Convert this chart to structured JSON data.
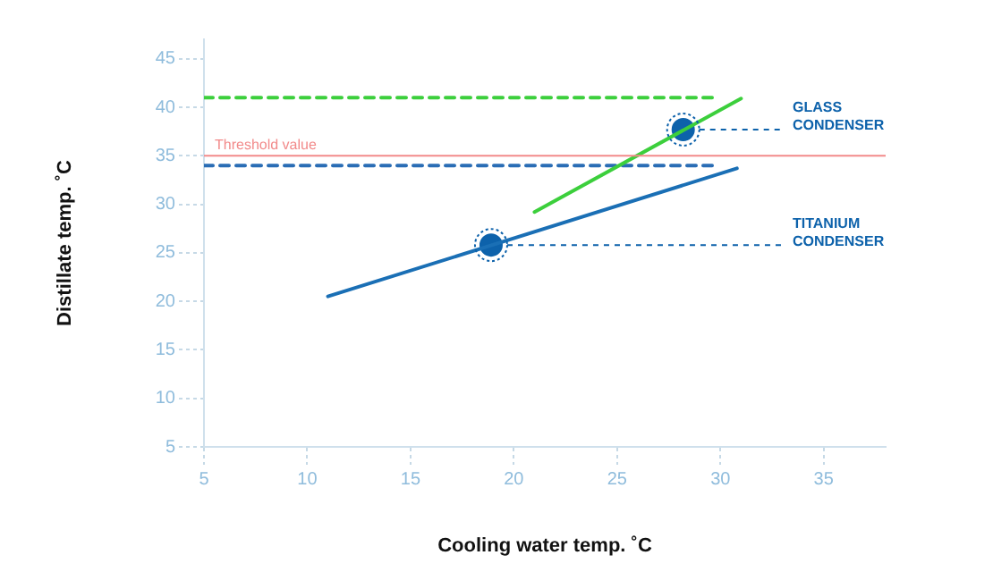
{
  "chart_data": {
    "type": "line",
    "xlabel": "Cooling water temp. ˚C",
    "ylabel": "Distillate temp. ˚C",
    "xlim": [
      5,
      38
    ],
    "ylim": [
      5,
      47
    ],
    "xticks": [
      5,
      10,
      15,
      20,
      25,
      30,
      35
    ],
    "yticks": [
      5,
      10,
      15,
      20,
      25,
      30,
      35,
      40,
      45
    ],
    "grid": false,
    "legend": false,
    "marker": "none",
    "line_style": "solid",
    "series": [
      {
        "color": "#1a6fb5",
        "x": [
          11,
          30.8
        ],
        "values": [
          20.5,
          33.7
        ]
      },
      {
        "color": "#3ccf3c",
        "x": [
          21,
          31
        ],
        "values": [
          29.2,
          40.9
        ]
      },
      {
        "color": "#3ccf3c",
        "x": [
          5,
          29.9
        ],
        "values": [
          41,
          41
        ],
        "line_style": "dashed"
      },
      {
        "color": "#2a6db5",
        "x": [
          5,
          29.9
        ],
        "values": [
          34,
          34
        ],
        "line_style": "dashed"
      },
      {
        "type": "scatter",
        "name": "GLASS CONDENSER",
        "color": "#0d62ab",
        "x": [
          28.2
        ],
        "values": [
          37.7
        ],
        "marker": "circle"
      },
      {
        "type": "scatter",
        "name": "TITANIUM CONDENSER",
        "color": "#0d62ab",
        "x": [
          18.9
        ],
        "values": [
          25.8
        ],
        "marker": "circle"
      }
    ],
    "ref_lines": [
      {
        "axis": "y",
        "value": 35,
        "label": "Threshold value",
        "color": "#f28a8a",
        "line_style": "solid"
      }
    ]
  }
}
